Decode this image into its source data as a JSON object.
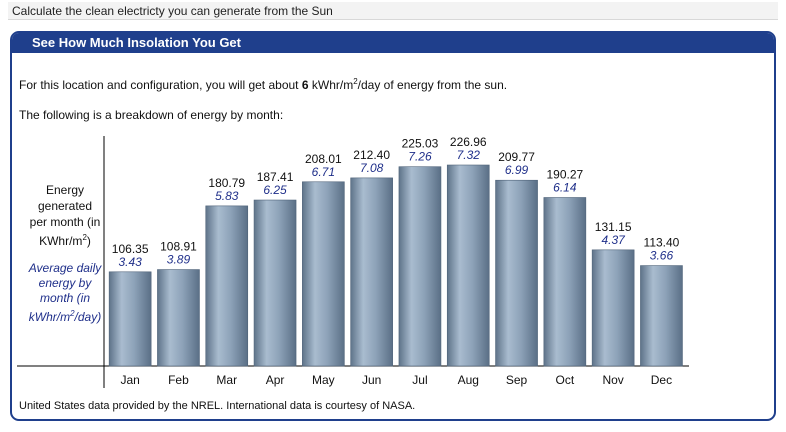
{
  "top_bar": {
    "text": "Calculate the clean electricty you can generate from the Sun"
  },
  "panel": {
    "title": "See How Much Insolation You Get",
    "summary_before": "For this location and configuration, you will get about ",
    "summary_value": "6",
    "summary_unit_pre": " kWhr/m",
    "summary_unit_sup": "2",
    "summary_after": "/day of energy from the sun.",
    "breakdown_text": "The following is a breakdown of energy by month:",
    "footer": "United States data provided by the NREL. International data is courtesy of NASA."
  },
  "colors": {
    "header": "#1f3f8c",
    "bar": "#8aa0b8",
    "daily_text": "#1f2f8a"
  },
  "chart_data": {
    "type": "bar",
    "categories": [
      "Jan",
      "Feb",
      "Mar",
      "Apr",
      "May",
      "Jun",
      "Jul",
      "Aug",
      "Sep",
      "Oct",
      "Nov",
      "Dec"
    ],
    "series": [
      {
        "name": "Energy generated per month (in KWhr/m2)",
        "values": [
          106.35,
          108.91,
          180.79,
          187.41,
          208.01,
          212.4,
          225.03,
          226.96,
          209.77,
          190.27,
          131.15,
          113.4
        ],
        "labels": [
          "106.35",
          "108.91",
          "180.79",
          "187.41",
          "208.01",
          "212.40",
          "225.03",
          "226.96",
          "209.77",
          "190.27",
          "131.15",
          "113.40"
        ]
      },
      {
        "name": "Average daily energy by month (in kWhr/m2/day)",
        "values": [
          3.43,
          3.89,
          5.83,
          6.25,
          6.71,
          7.08,
          7.26,
          7.32,
          6.99,
          6.14,
          4.37,
          3.66
        ],
        "labels": [
          "3.43",
          "3.89",
          "5.83",
          "6.25",
          "6.71",
          "7.08",
          "7.26",
          "7.32",
          "6.99",
          "6.14",
          "4.37",
          "3.66"
        ]
      }
    ],
    "ylabel_monthly_lines": [
      "Energy",
      "generated",
      "per month (in",
      "KWhr/m"
    ],
    "ylabel_monthly_sup": "2",
    "ylabel_monthly_end": ")",
    "ylabel_daily_lines": [
      "Average daily",
      "energy by",
      "month (in",
      "kWhr/m"
    ],
    "ylabel_daily_sup": "2",
    "ylabel_daily_end": "/day)",
    "ylim": [
      0,
      226.96
    ],
    "grid": false,
    "legend": "none"
  }
}
